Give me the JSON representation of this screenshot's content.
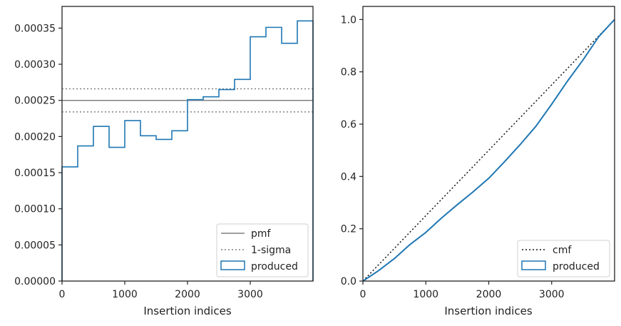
{
  "chart_data": [
    {
      "type": "step-histogram",
      "xlabel": "Insertion indices",
      "ylabel": "",
      "xlim": [
        0,
        4000
      ],
      "ylim": [
        0,
        0.00038
      ],
      "xticks": [
        0,
        1000,
        2000,
        3000
      ],
      "xtick_labels": [
        "0",
        "1000",
        "2000",
        "3000"
      ],
      "yticks": [
        0,
        5e-05,
        0.0001,
        0.00015,
        0.0002,
        0.00025,
        0.0003,
        0.00035
      ],
      "ytick_labels": [
        "0.00000",
        "0.00005",
        "0.00010",
        "0.00015",
        "0.00020",
        "0.00025",
        "0.00030",
        "0.00035"
      ],
      "bin_edges": [
        0,
        250,
        500,
        750,
        1000,
        1250,
        1500,
        1750,
        2000,
        2250,
        2500,
        2750,
        3000,
        3250,
        3500,
        3750,
        4000
      ],
      "values": [
        0.000158,
        0.000187,
        0.000214,
        0.000185,
        0.000222,
        0.000201,
        0.000196,
        0.000208,
        0.000251,
        0.000255,
        0.000265,
        0.000279,
        0.000338,
        0.000351,
        0.000329,
        0.00036
      ],
      "pmf": 0.00025,
      "sigma_band": [
        0.000234,
        0.000266
      ],
      "legend": {
        "placement": "lower right",
        "entries": [
          "pmf",
          "1-sigma",
          "produced"
        ]
      },
      "colors": {
        "produced": "#1f77b4",
        "pmf": "#808080",
        "sigma": "#808080"
      }
    },
    {
      "type": "line",
      "xlabel": "Insertion indices",
      "ylabel": "",
      "xlim": [
        0,
        4000
      ],
      "ylim": [
        0,
        1.05
      ],
      "xticks": [
        0,
        1000,
        2000,
        3000
      ],
      "xtick_labels": [
        "0",
        "1000",
        "2000",
        "3000"
      ],
      "yticks": [
        0,
        0.2,
        0.4,
        0.6,
        0.8,
        1.0
      ],
      "ytick_labels": [
        "0.0",
        "0.2",
        "0.4",
        "0.6",
        "0.8",
        "1.0"
      ],
      "cmf": {
        "x": [
          0,
          4000
        ],
        "y": [
          0,
          1
        ]
      },
      "produced": {
        "x": [
          0,
          250,
          500,
          750,
          1000,
          1250,
          1500,
          1750,
          2000,
          2250,
          2500,
          2750,
          3000,
          3250,
          3500,
          3750,
          4000
        ],
        "y": [
          0,
          0.04,
          0.086,
          0.14,
          0.186,
          0.241,
          0.292,
          0.341,
          0.393,
          0.456,
          0.522,
          0.592,
          0.676,
          0.764,
          0.846,
          0.935,
          1.0
        ]
      },
      "legend": {
        "placement": "lower right",
        "entries": [
          "cmf",
          "produced"
        ]
      },
      "colors": {
        "produced": "#1f77b4",
        "cmf": "#111111"
      }
    }
  ]
}
